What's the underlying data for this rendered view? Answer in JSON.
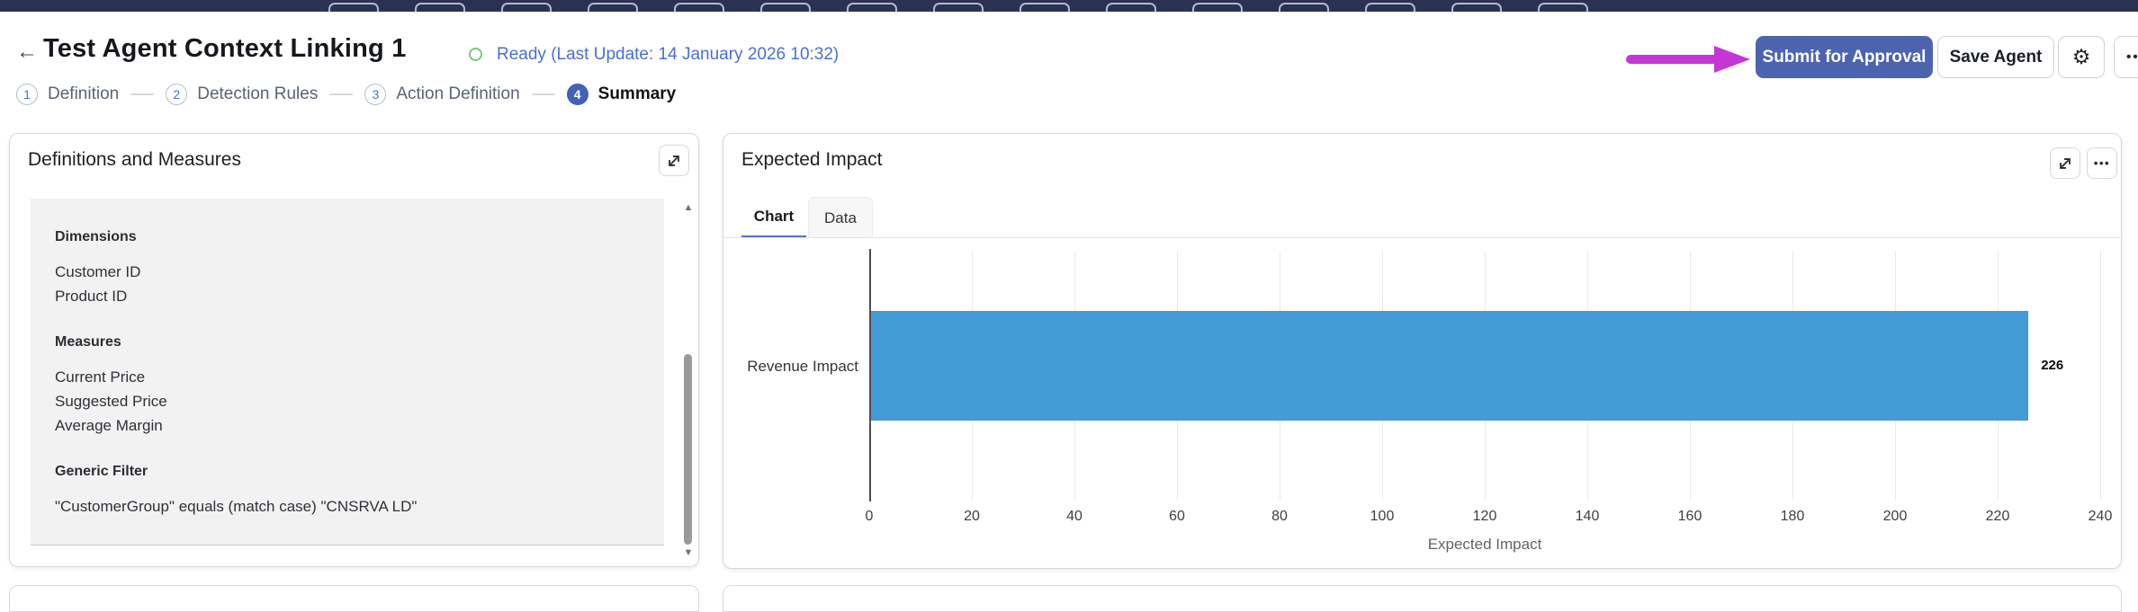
{
  "topbar": {
    "tab_count": 15,
    "color": "#2a3254"
  },
  "header": {
    "back_icon": "←",
    "title": "Test Agent Context Linking 1",
    "status": {
      "text": "Ready (Last Update: 14 January 2026 10:32)",
      "ring_color": "#7cc878",
      "text_color": "#4a6fd4"
    },
    "actions": {
      "submit_label": "Submit for Approval",
      "save_label": "Save Agent",
      "gear_icon": "⚙",
      "dots_icon": "•••"
    },
    "annotation": {
      "type": "arrow",
      "color": "#c337d5",
      "points_at": "Submit for Approval"
    }
  },
  "stepper": {
    "steps": [
      {
        "num": "1",
        "label": "Definition",
        "active": false
      },
      {
        "num": "2",
        "label": "Detection Rules",
        "active": false
      },
      {
        "num": "3",
        "label": "Action Definition",
        "active": false
      },
      {
        "num": "4",
        "label": "Summary",
        "active": true
      }
    ]
  },
  "definitions_card": {
    "title": "Definitions and Measures",
    "expand_icon": "expand-diagonal",
    "scrollbar": {
      "up_icon": "▲",
      "down_icon": "▼"
    },
    "sections": [
      {
        "heading": "Dimensions",
        "items": [
          "Customer ID",
          "Product ID"
        ]
      },
      {
        "heading": "Measures",
        "items": [
          "Current Price",
          "Suggested Price",
          "Average Margin"
        ]
      },
      {
        "heading": "Generic Filter",
        "items": [
          "\"CustomerGroup\" equals (match case) \"CNSRVA LD\""
        ]
      }
    ]
  },
  "impact_card": {
    "title": "Expected Impact",
    "expand_icon": "expand-diagonal",
    "dots_icon": "•••",
    "tabs": [
      {
        "label": "Chart",
        "active": true
      },
      {
        "label": "Data",
        "active": false
      }
    ]
  },
  "chart_data": {
    "type": "bar",
    "orientation": "horizontal",
    "title": "Expected Impact",
    "categories": [
      "Revenue Impact"
    ],
    "values": [
      226
    ],
    "value_labels": [
      "226"
    ],
    "xlabel": "Expected Impact",
    "ylabel": "",
    "xlim": [
      0,
      240
    ],
    "xticks": [
      0,
      20,
      40,
      60,
      80,
      100,
      120,
      140,
      160,
      180,
      200,
      220,
      240
    ],
    "grid": true,
    "legend": false,
    "bar_color": "#449bd5"
  },
  "colors": {
    "accent_blue": "#4c64b0",
    "link_blue": "#4a6fd4",
    "status_green": "#7cc878",
    "bar_blue": "#449bd5",
    "annotation_magenta": "#c337d5",
    "topbar_navy": "#2a3254"
  }
}
